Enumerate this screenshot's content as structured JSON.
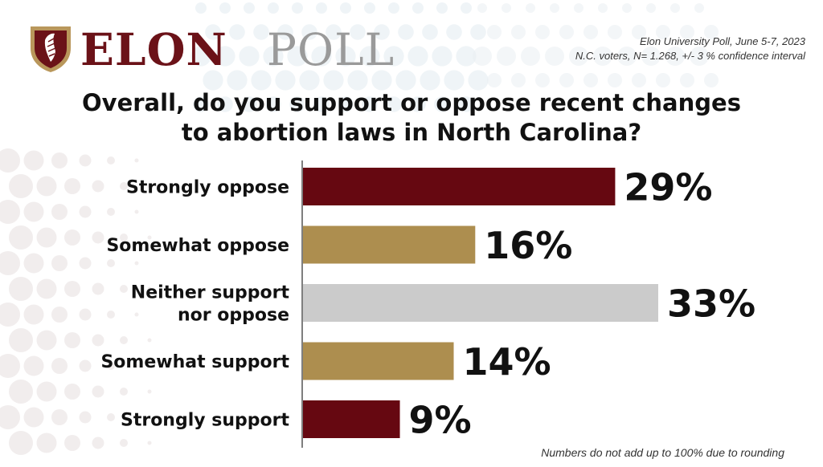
{
  "logo": {
    "part1": "ELON",
    "part2": "POLL"
  },
  "source": {
    "line1": "Elon University Poll, June 5-7, 2023",
    "line2": "N.C. voters, N= 1.268, +/- 3 % confidence interval"
  },
  "question": {
    "line1": "Overall, do you support or oppose recent changes",
    "line2": "to abortion laws in North Carolina?"
  },
  "note": "Numbers do not add up to 100% due to rounding",
  "colors": {
    "maroon": "#660811",
    "gold": "#ad8e4f",
    "gray": "#cbcbcb",
    "axis": "#555555"
  },
  "chart_data": {
    "type": "bar",
    "orientation": "horizontal",
    "categories": [
      [
        "Strongly oppose"
      ],
      [
        "Somewhat oppose"
      ],
      [
        "Neither support",
        "nor oppose"
      ],
      [
        "Somewhat support"
      ],
      [
        "Strongly support"
      ]
    ],
    "values": [
      29,
      16,
      33,
      14,
      9
    ],
    "value_labels": [
      "29%",
      "16%",
      "33%",
      "14%",
      "9%"
    ],
    "bar_colors": [
      "#660811",
      "#ad8e4f",
      "#cbcbcb",
      "#ad8e4f",
      "#660811"
    ],
    "title": "Overall, do you support or oppose recent changes to abortion laws in North Carolina?",
    "xlim": [
      0,
      33
    ],
    "grid": false,
    "legend": "none"
  }
}
